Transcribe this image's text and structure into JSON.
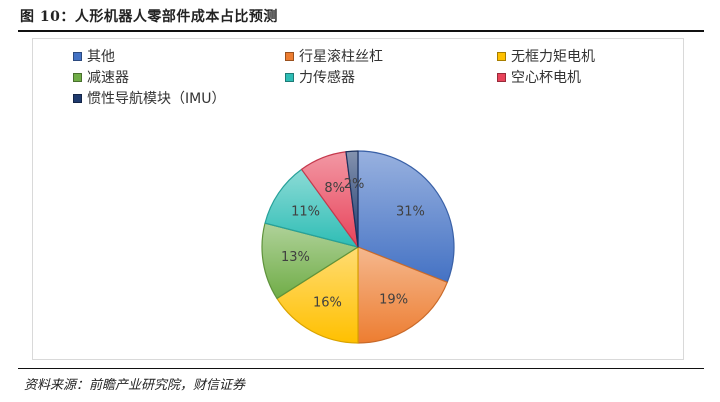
{
  "header": {
    "title": "图 10：人形机器人零部件成本占比预测"
  },
  "footer": {
    "source": "资料来源：前瞻产业研究院，财信证券"
  },
  "legend": [
    {
      "label": "其他",
      "color": "#4472C4"
    },
    {
      "label": "行星滚柱丝杠",
      "color": "#ED7D31"
    },
    {
      "label": "无框力矩电机",
      "color": "#FFC000"
    },
    {
      "label": "减速器",
      "color": "#70AD47"
    },
    {
      "label": "力传感器",
      "color": "#2EBDB5"
    },
    {
      "label": "空心杯电机",
      "color": "#E8435A"
    },
    {
      "label": "惯性导航模块（IMU）",
      "color": "#1F3A6E"
    }
  ],
  "chart_data": {
    "type": "pie",
    "title": "",
    "series": [
      {
        "label": "其他",
        "value": 31,
        "display": "31%",
        "color": "#4472C4"
      },
      {
        "label": "行星滚柱丝杠",
        "value": 19,
        "display": "19%",
        "color": "#ED7D31"
      },
      {
        "label": "无框力矩电机",
        "value": 16,
        "display": "16%",
        "color": "#FFC000"
      },
      {
        "label": "减速器",
        "value": 13,
        "display": "13%",
        "color": "#70AD47"
      },
      {
        "label": "力传感器",
        "value": 11,
        "display": "11%",
        "color": "#2EBDB5"
      },
      {
        "label": "空心杯电机",
        "value": 8,
        "display": "8%",
        "color": "#E8435A"
      },
      {
        "label": "惯性导航模块（IMU）",
        "value": 2,
        "display": "2%",
        "color": "#1F3A6E"
      }
    ],
    "start_angle": "12 o'clock",
    "direction": "clockwise",
    "legend_position": "top"
  }
}
